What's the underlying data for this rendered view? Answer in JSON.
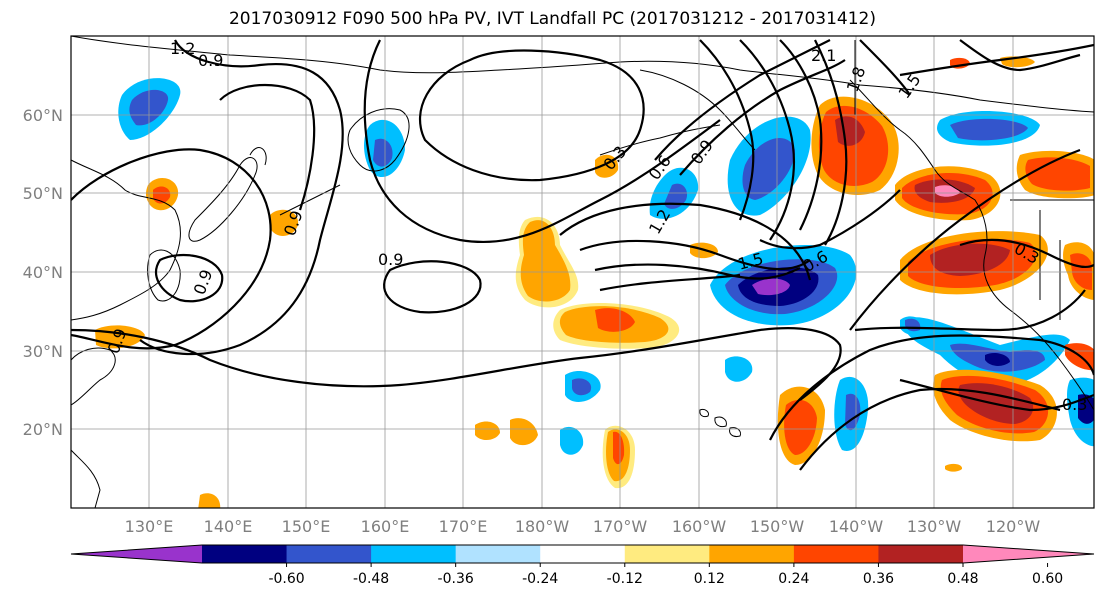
{
  "title": "2017030912 F090 500 hPa PV, IVT Landfall PC (2017031212 - 2017031412)",
  "lat_labels": [
    "60°N",
    "50°N",
    "40°N",
    "30°N",
    "20°N"
  ],
  "lon_labels": [
    "130°E",
    "140°E",
    "150°E",
    "160°E",
    "170°E",
    "180°W",
    "170°W",
    "160°W",
    "150°W",
    "140°W",
    "130°W",
    "120°W"
  ],
  "contour_labels": [
    "1.2",
    "0.9",
    "2.1",
    "1.8",
    "1.5",
    "0.3",
    "0.6",
    "0.9",
    "1.2",
    "0.9",
    "1.5",
    "0.6",
    "0.9",
    "0.3",
    "0.3",
    "0.9",
    "0.9"
  ],
  "colorbar": {
    "tick_labels": [
      "-0.60",
      "-0.48",
      "-0.36",
      "-0.24",
      "-0.12",
      "0.12",
      "0.24",
      "0.36",
      "0.48",
      "0.60"
    ],
    "colors": [
      "#9933cc",
      "#000080",
      "#3355cc",
      "#00bfff",
      "#b0e2ff",
      "#ffffff",
      "#ffeb80",
      "#ffa500",
      "#ff4500",
      "#b22222",
      "#ff88bb"
    ]
  }
}
